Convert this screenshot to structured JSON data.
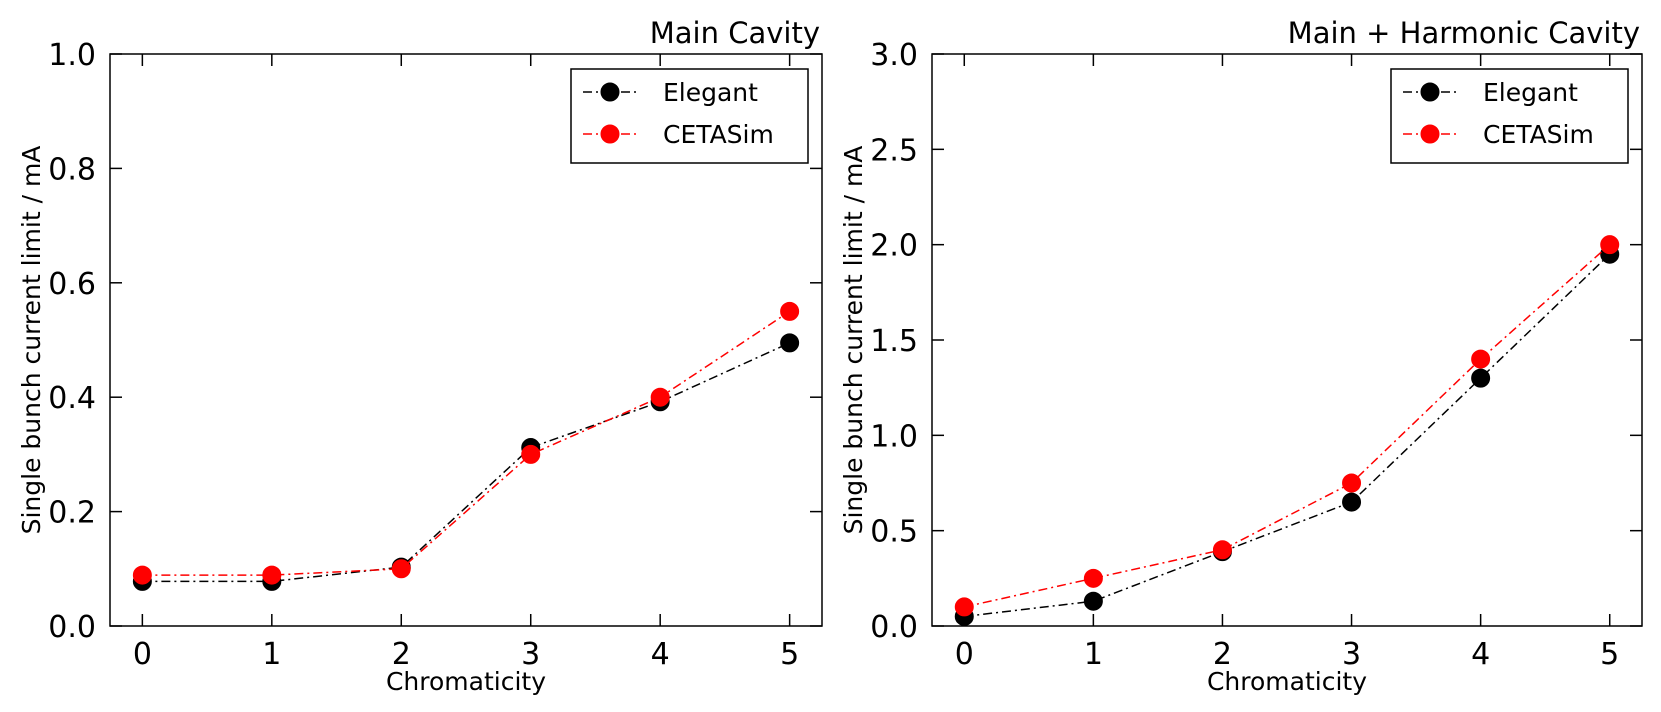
{
  "chart_data": [
    {
      "type": "line",
      "title": "Main Cavity",
      "xlabel": "Chromaticity",
      "ylabel": "Single bunch current limit / mA",
      "xlim": [
        -0.25,
        5.25
      ],
      "ylim": [
        0.0,
        1.0
      ],
      "xticks": [
        "0",
        "1",
        "2",
        "3",
        "4",
        "5"
      ],
      "yticks": [
        "0.0",
        "0.2",
        "0.4",
        "0.6",
        "0.8",
        "1.0"
      ],
      "legend_position": "top-right",
      "grid": false,
      "series": [
        {
          "name": "Elegant",
          "color": "#000000",
          "x": [
            0,
            1,
            2,
            3,
            4,
            5
          ],
          "y": [
            0.078,
            0.078,
            0.103,
            0.312,
            0.392,
            0.495
          ]
        },
        {
          "name": "CETASim",
          "color": "#ff0000",
          "x": [
            0,
            1,
            2,
            3,
            4,
            5
          ],
          "y": [
            0.089,
            0.089,
            0.1,
            0.3,
            0.4,
            0.55
          ]
        }
      ]
    },
    {
      "type": "line",
      "title": "Main + Harmonic Cavity",
      "xlabel": "Chromaticity",
      "ylabel": "Single bunch current limit / mA",
      "xlim": [
        -0.25,
        5.25
      ],
      "ylim": [
        0.0,
        3.0
      ],
      "xticks": [
        "0",
        "1",
        "2",
        "3",
        "4",
        "5"
      ],
      "yticks": [
        "0.0",
        "0.5",
        "1.0",
        "1.5",
        "2.0",
        "2.5",
        "3.0"
      ],
      "legend_position": "top-right",
      "grid": false,
      "series": [
        {
          "name": "Elegant",
          "color": "#000000",
          "x": [
            0,
            1,
            2,
            3,
            4,
            5
          ],
          "y": [
            0.05,
            0.13,
            0.39,
            0.65,
            1.3,
            1.95
          ]
        },
        {
          "name": "CETASim",
          "color": "#ff0000",
          "x": [
            0,
            1,
            2,
            3,
            4,
            5
          ],
          "y": [
            0.1,
            0.25,
            0.4,
            0.75,
            1.4,
            2.0
          ]
        }
      ]
    }
  ]
}
